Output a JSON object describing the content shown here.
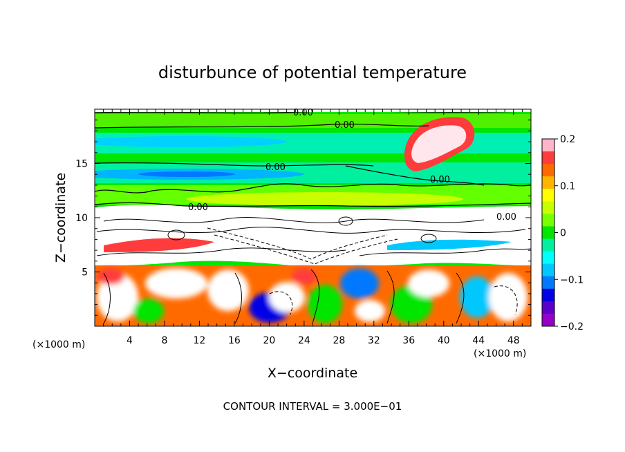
{
  "chart_data": {
    "type": "heatmap",
    "title": "disturbunce of potential temperature",
    "xlabel": "X−coordinate",
    "ylabel": "Z−coordinate",
    "x_unit": "(×1000 m)",
    "y_unit": "(×1000 m)",
    "footer": "CONTOUR INTERVAL = 3.000E−01",
    "xlim": [
      0,
      50
    ],
    "ylim": [
      0,
      20
    ],
    "xticks": [
      4,
      8,
      12,
      16,
      20,
      24,
      28,
      32,
      36,
      40,
      44,
      48
    ],
    "yticks": [
      5,
      10,
      15
    ],
    "contour_labels": [
      "0.00",
      "0.00",
      "0.00",
      "0.00",
      "0.00",
      "0.00"
    ],
    "colorbar": {
      "min": -0.2,
      "max": 0.2,
      "ticks": [
        "0.2",
        "0.1",
        "0",
        "−0.1",
        "−0.2"
      ],
      "tick_values": [
        0.2,
        0.1,
        0,
        -0.1,
        -0.2
      ],
      "colors": [
        "#ffb4c8",
        "#ff3c3c",
        "#ff6a00",
        "#ffb400",
        "#ffff00",
        "#c8ff00",
        "#78ff00",
        "#00e600",
        "#00f0a0",
        "#00ffff",
        "#00c8ff",
        "#0078ff",
        "#0000e6",
        "#5a00c8",
        "#9600c8"
      ]
    }
  }
}
